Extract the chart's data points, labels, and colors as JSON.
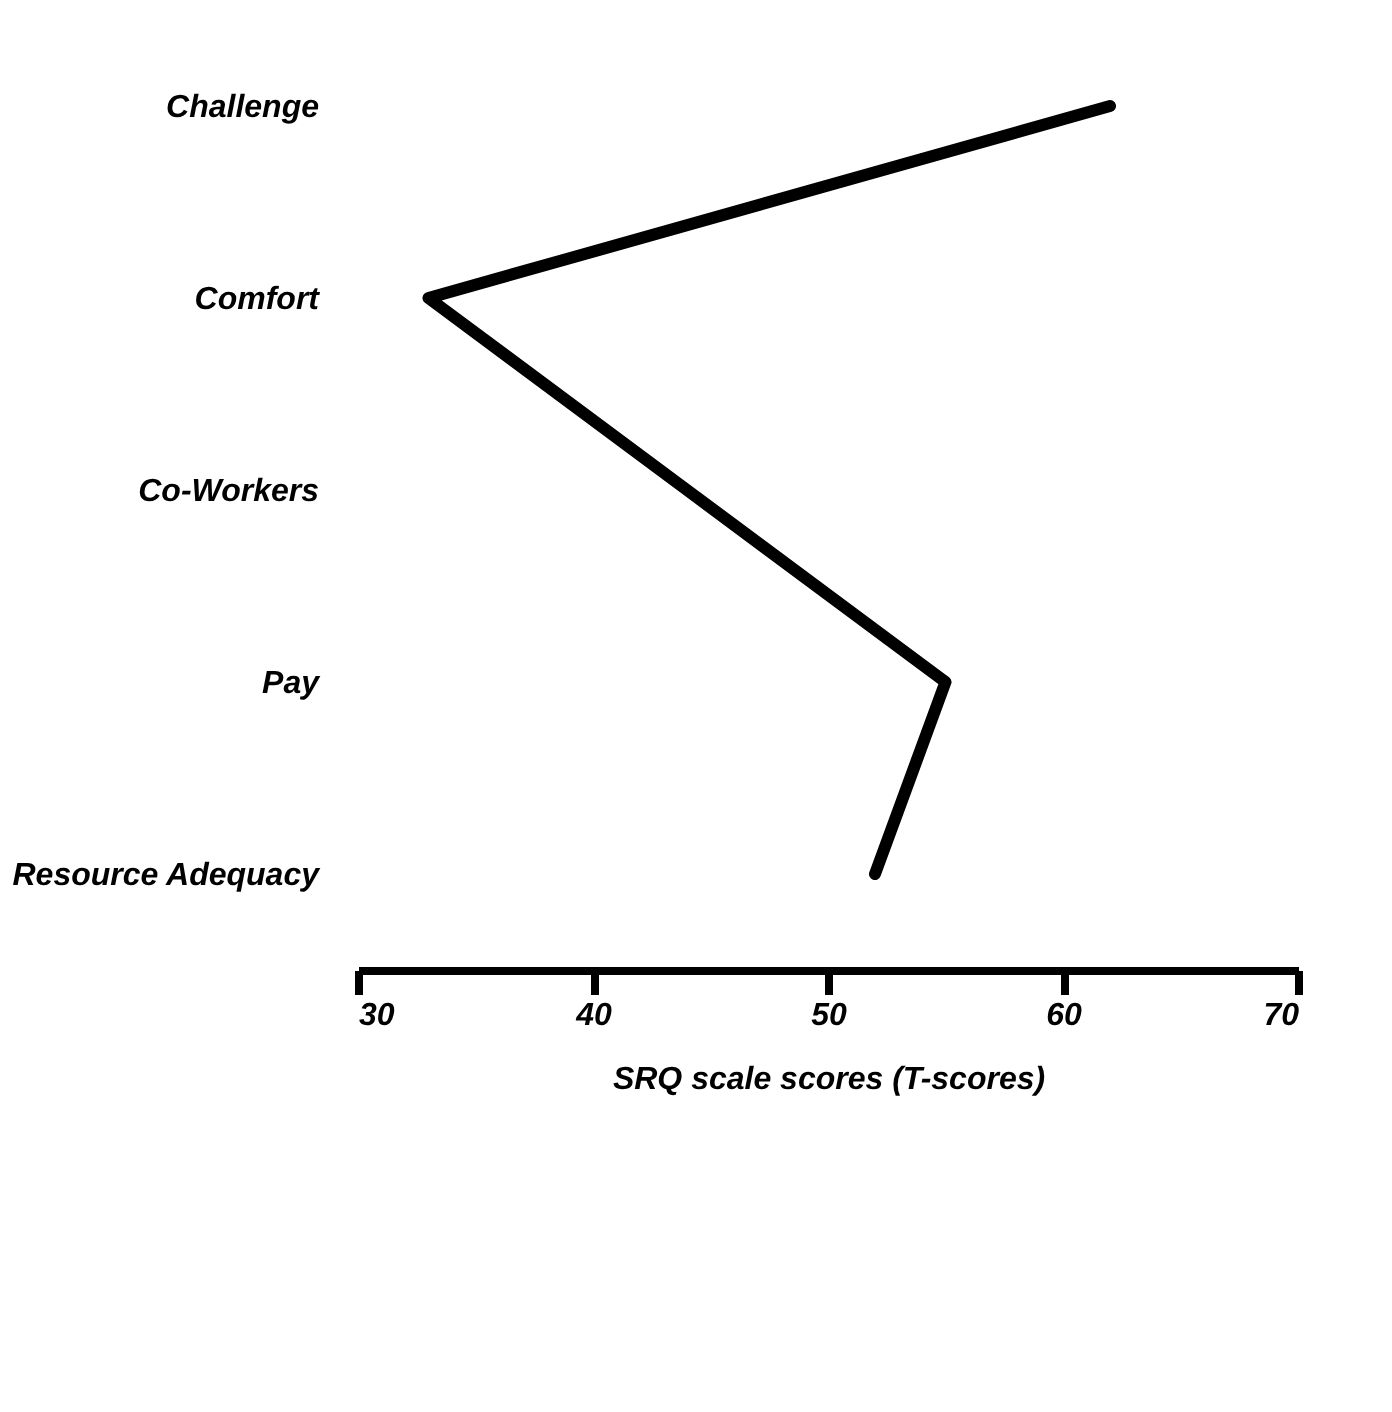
{
  "chart_data": {
    "type": "line",
    "orientation": "horizontal",
    "categories": [
      "Challenge",
      "Comfort",
      "Co-Workers",
      "Pay",
      "Resource Adequacy"
    ],
    "series": [
      {
        "color": "#000000",
        "values": [
          62,
          33,
          44,
          55,
          52
        ]
      }
    ],
    "xlabel": "SRQ scale scores (T-scores)",
    "xlim": [
      30,
      70
    ],
    "xticks": [
      30,
      40,
      50,
      60,
      70
    ],
    "grid": false,
    "marker": "none",
    "line_style": "solid"
  }
}
